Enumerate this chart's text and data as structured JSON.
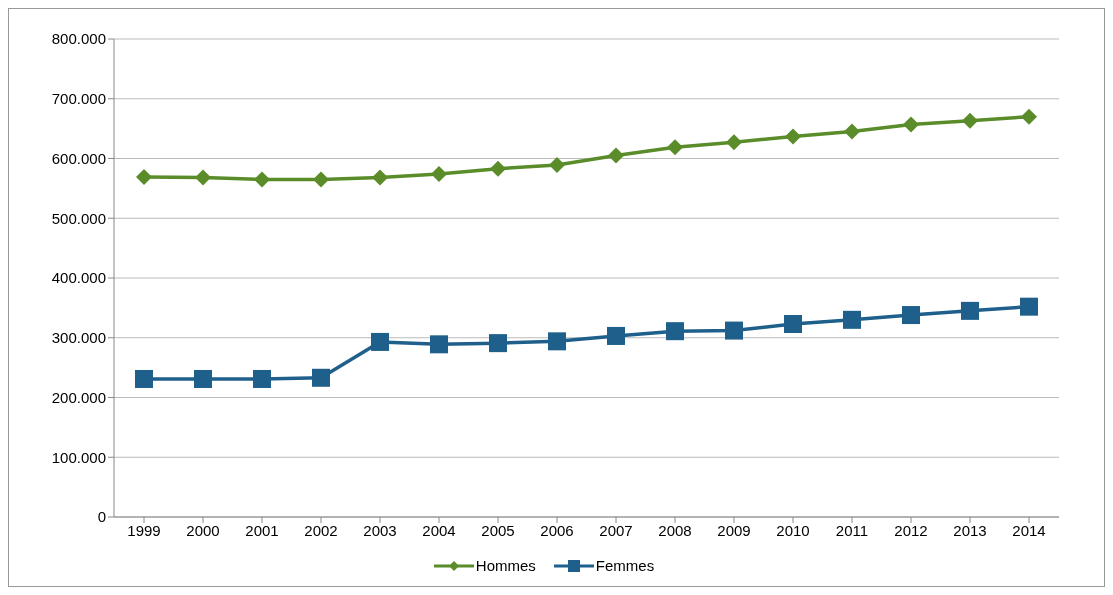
{
  "chart_data": {
    "type": "line",
    "categories": [
      "1999",
      "2000",
      "2001",
      "2002",
      "2003",
      "2004",
      "2005",
      "2006",
      "2007",
      "2008",
      "2009",
      "2010",
      "2011",
      "2012",
      "2013",
      "2014"
    ],
    "series": [
      {
        "name": "Hommes",
        "color": "#5b8c2a",
        "marker": "diamond",
        "values": [
          569000,
          568000,
          565000,
          565000,
          568000,
          574000,
          583000,
          589000,
          605000,
          619000,
          627000,
          637000,
          645000,
          657000,
          663000,
          670000
        ]
      },
      {
        "name": "Femmes",
        "color": "#1f5f8b",
        "marker": "square",
        "values": [
          231000,
          231000,
          231000,
          233000,
          293000,
          289000,
          291000,
          294000,
          303000,
          311000,
          312000,
          323000,
          330000,
          338000,
          345000,
          352000
        ]
      }
    ],
    "ylim": [
      0,
      800000
    ],
    "yticks": [
      0,
      {
        "value": 100000,
        "label": "100.000"
      },
      {
        "value": 200000,
        "label": "200.000"
      },
      {
        "value": 300000,
        "label": "300.000"
      },
      {
        "value": 400000,
        "label": "400.000"
      },
      {
        "value": 500000,
        "label": "500.000"
      },
      {
        "value": 600000,
        "label": "600.000"
      },
      {
        "value": 700000,
        "label": "700.000"
      },
      {
        "value": 800000,
        "label": "800.000"
      }
    ],
    "grid": "y",
    "legend": "bottom",
    "line_style": "solid"
  }
}
